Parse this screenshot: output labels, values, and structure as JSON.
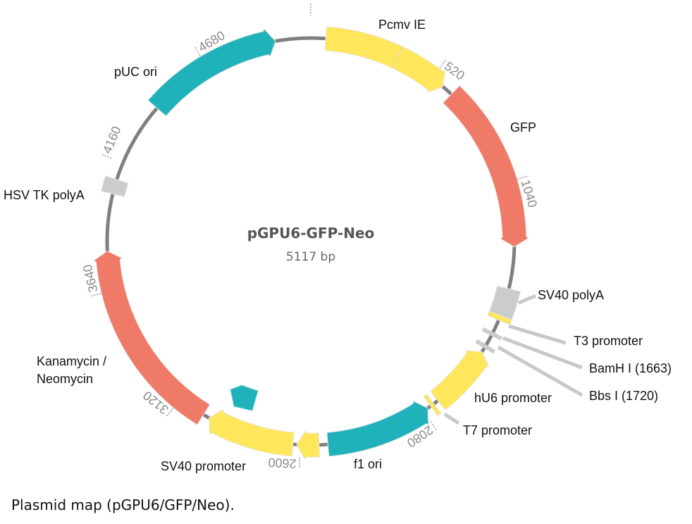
{
  "plasmid": {
    "name": "pGPU6-GFP-Neo",
    "size_label": "5117 bp",
    "length": 5117,
    "backbone_color": "#808080"
  },
  "features": [
    {
      "label": "Pcmv IE",
      "start": 60,
      "end": 575,
      "direction": "forward",
      "color": "#ffe65a"
    },
    {
      "label": "GFP",
      "start": 620,
      "end": 1300,
      "direction": "forward",
      "color": "#f07a68"
    },
    {
      "label": "SV40 polyA",
      "start": 1470,
      "end": 1582,
      "direction": "none",
      "color": "#cccccc"
    },
    {
      "label": "T3 promoter",
      "start": 1582,
      "end": 1602,
      "direction": "none",
      "color": "#ffe65a"
    },
    {
      "label": "hU6 promoter",
      "start": 1745,
      "end": 2010,
      "direction": "reverse",
      "color": "#ffe65a"
    },
    {
      "label": "T7 promoter",
      "start": 2030,
      "end": 2046,
      "direction": "none",
      "color": "#ffe65a"
    },
    {
      "label": "f1 ori",
      "start": 2060,
      "end": 2490,
      "direction": "reverse",
      "color": "#20b2ba"
    },
    {
      "label": "",
      "start": 2525,
      "end": 2615,
      "direction": "forward",
      "color": "#ffe65a"
    },
    {
      "label": "SV40 promoter",
      "start": 2630,
      "end": 2985,
      "direction": "forward",
      "color": "#ffe65a"
    },
    {
      "label": "Kanamycin / Neomycin",
      "start": 3010,
      "end": 3800,
      "direction": "forward",
      "color": "#f07a68"
    },
    {
      "label": "HSV TK polyA",
      "start": 4030,
      "end": 4090,
      "direction": "none",
      "color": "#cccccc"
    },
    {
      "label": "pUC ori",
      "start": 4420,
      "end": 4975,
      "direction": "forward",
      "color": "#20b2ba"
    }
  ],
  "sites": [
    {
      "label": "BamH I (1663)",
      "position": 1663,
      "color": "#cccccc"
    },
    {
      "label": "Bbs I (1720)",
      "position": 1720,
      "color": "#cccccc"
    }
  ],
  "labels": {
    "pcmv": "Pcmv IE",
    "gfp": "GFP",
    "sv40polya": "SV40 polyA",
    "t3": "T3 promoter",
    "bamh": "BamH I (1663)",
    "bbs": "Bbs I (1720)",
    "hu6": "hU6 promoter",
    "t7": "T7 promoter",
    "f1": "f1 ori",
    "sv40prom": "SV40 promoter",
    "kan1": "Kanamycin /",
    "kan2": "Neomycin",
    "hsvtk": "HSV TK polyA",
    "puc": "pUC ori"
  },
  "ticks": [
    520,
    1040,
    2080,
    2600,
    3120,
    3640,
    4160,
    4680
  ],
  "caption": "Plasmid map (pGPU6/GFP/Neo)."
}
